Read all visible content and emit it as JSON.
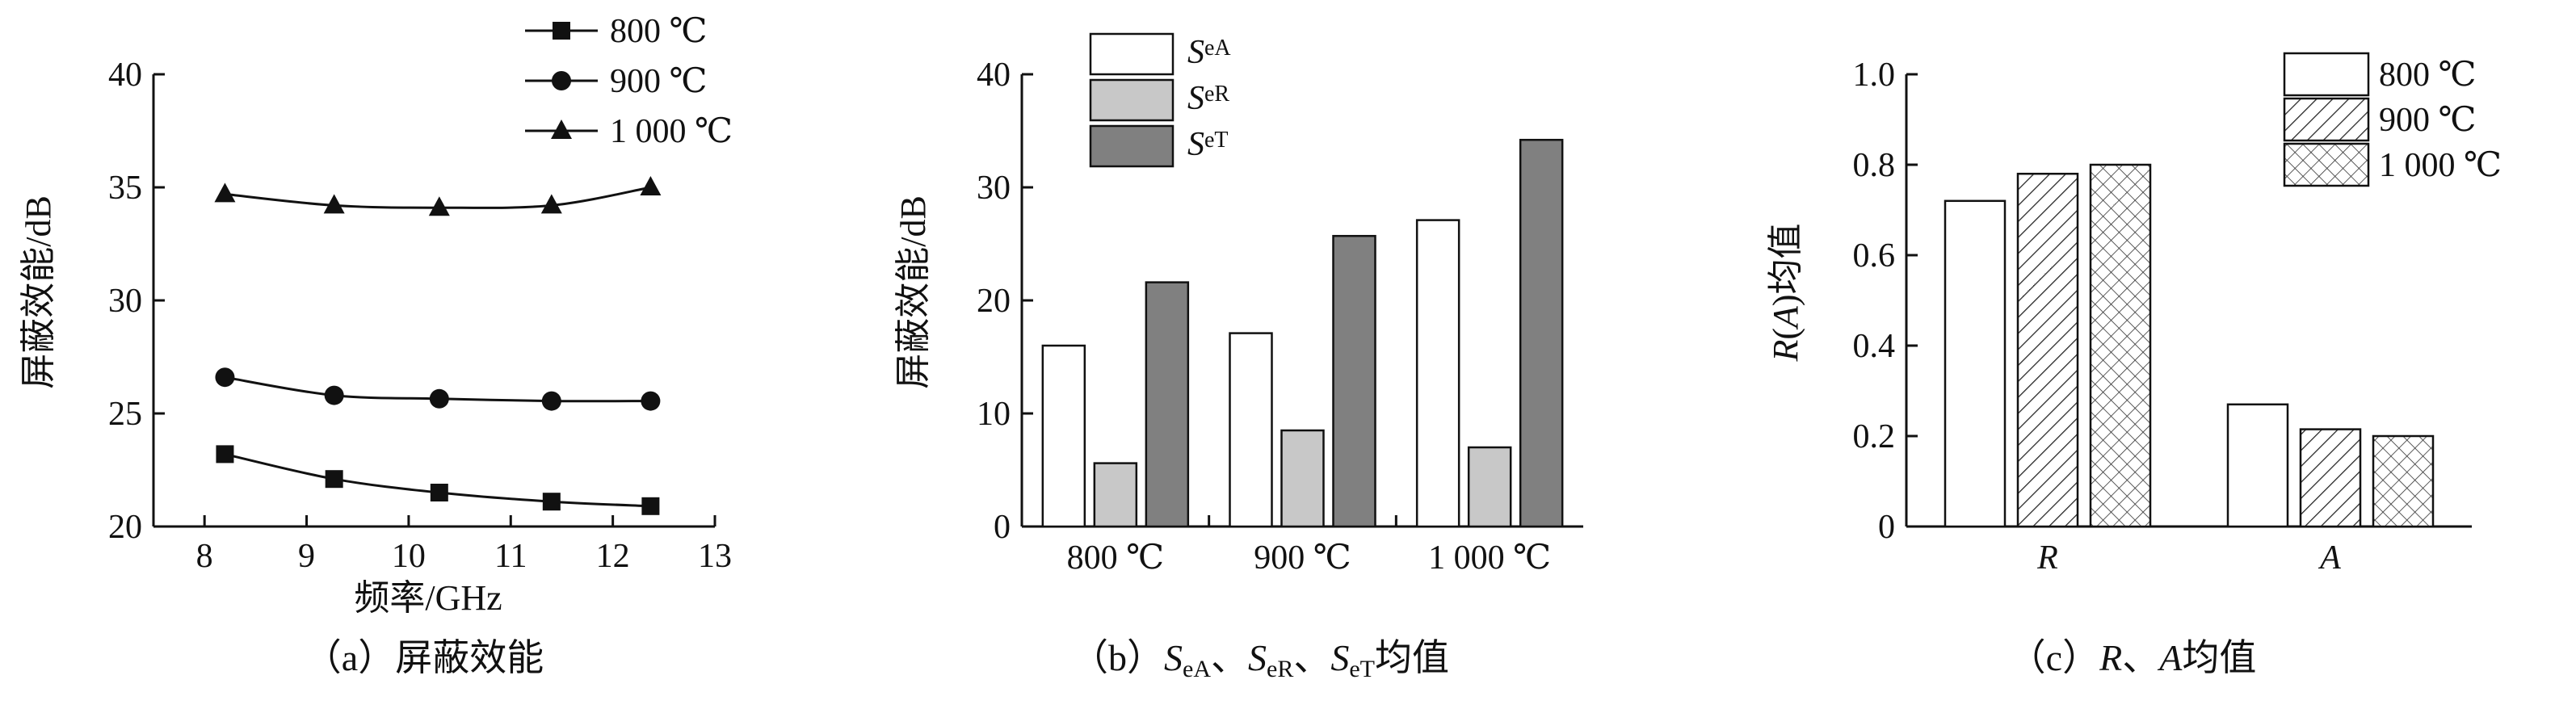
{
  "charts": [
    {
      "caption": "（a）屏蔽效能",
      "chart_data": {
        "type": "line",
        "xlabel": "频率/GHz",
        "ylabel": "屏蔽效能/dB",
        "xlim": [
          7.5,
          13
        ],
        "ylim": [
          20,
          40
        ],
        "xticks": [
          8,
          9,
          10,
          11,
          12,
          13
        ],
        "yticks": [
          20,
          25,
          30,
          35,
          40
        ],
        "legend": "top-right",
        "series": [
          {
            "name": "800 ℃",
            "marker": "square",
            "x": [
              8.2,
              9.27,
              10.3,
              11.4,
              12.37
            ],
            "y": [
              23.2,
              22.1,
              21.5,
              21.1,
              20.9
            ]
          },
          {
            "name": "900 ℃",
            "marker": "circle",
            "x": [
              8.2,
              9.27,
              10.3,
              11.4,
              12.37
            ],
            "y": [
              26.6,
              25.8,
              25.65,
              25.55,
              25.55
            ]
          },
          {
            "name": "1 000 ℃",
            "marker": "triangle",
            "x": [
              8.2,
              9.27,
              10.3,
              11.4,
              12.37
            ],
            "y": [
              34.7,
              34.2,
              34.1,
              34.2,
              35.0
            ]
          }
        ]
      }
    },
    {
      "caption": {
        "prefix": "（b）",
        "s1": "S",
        "s1sub": "eA",
        "sep1": "、",
        "s2": "S",
        "s2sub": "eR",
        "sep2": "、",
        "s3": "S",
        "s3sub": "eT",
        "suffix": "均值"
      },
      "chart_data": {
        "type": "bar",
        "ylabel": "屏蔽效能/dB",
        "ylim": [
          0,
          40
        ],
        "yticks": [
          0,
          10,
          20,
          30,
          40
        ],
        "categories": [
          "800 ℃",
          "900 ℃",
          "1 000 ℃"
        ],
        "legend": "top-left",
        "series": [
          {
            "name": "S",
            "sub": "eA",
            "color": "#ffffff",
            "values": [
              16.0,
              17.1,
              27.1
            ]
          },
          {
            "name": "S",
            "sub": "eR",
            "color": "#c8c8c8",
            "values": [
              5.6,
              8.5,
              7.0
            ]
          },
          {
            "name": "S",
            "sub": "eT",
            "color": "#808080",
            "values": [
              21.6,
              25.7,
              34.2
            ]
          }
        ]
      }
    },
    {
      "caption": {
        "prefix": "（c）",
        "r": "R",
        "sep": "、",
        "a": "A",
        "suffix": "均值"
      },
      "chart_data": {
        "type": "bar",
        "ylabel": {
          "r": "R",
          "paren_open": "(",
          "a": "A",
          "rest": ")均值"
        },
        "ylim": [
          0,
          1.0
        ],
        "yticks": [
          0,
          0.2,
          0.4,
          0.6,
          0.8,
          1.0
        ],
        "ytick_labels": [
          "0",
          "0.2",
          "0.4",
          "0.6",
          "0.8",
          "1.0"
        ],
        "categories": [
          "R",
          "A"
        ],
        "legend": "top-right",
        "series": [
          {
            "name": "800 ℃",
            "pattern": "plain",
            "values": [
              0.72,
              0.27
            ]
          },
          {
            "name": "900 ℃",
            "pattern": "hatch",
            "values": [
              0.78,
              0.215
            ]
          },
          {
            "name": "1 000 ℃",
            "pattern": "crosshatch",
            "values": [
              0.8,
              0.2
            ]
          }
        ]
      }
    }
  ]
}
